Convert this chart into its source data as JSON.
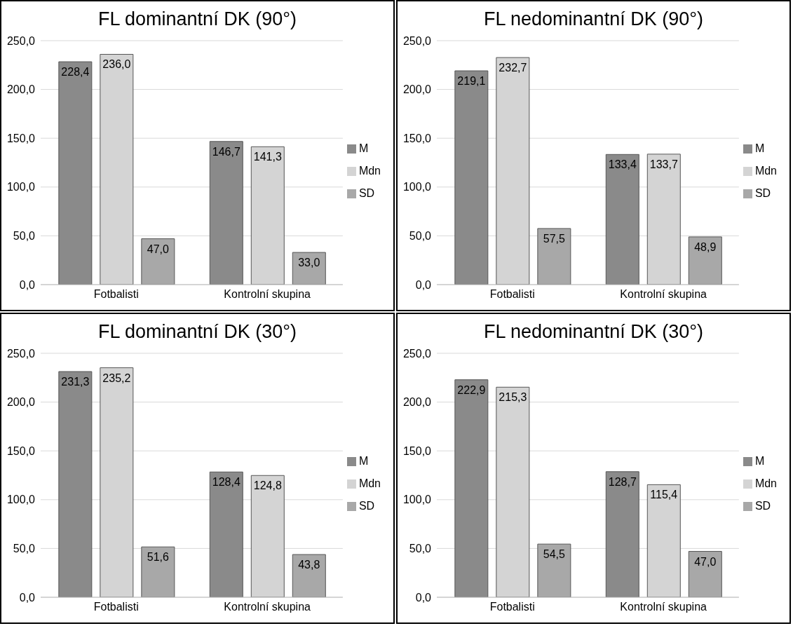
{
  "chart_data": [
    {
      "type": "bar",
      "title": "FL dominantní DK (90°)",
      "categories": [
        "Fotbalisti",
        "Kontrolní skupina"
      ],
      "ylim": [
        0,
        250
      ],
      "yticks": [
        {
          "value": 0,
          "label": "0,0"
        },
        {
          "value": 50,
          "label": "50,0"
        },
        {
          "value": 100,
          "label": "100,0"
        },
        {
          "value": 150,
          "label": "150,0"
        },
        {
          "value": 200,
          "label": "200,0"
        },
        {
          "value": 250,
          "label": "250,0"
        }
      ],
      "grid": "y",
      "legend": "right",
      "series": [
        {
          "name": "M",
          "color": "#8a8a8a",
          "values": [
            228.4,
            146.7
          ],
          "value_labels": [
            "228,4",
            "146,7"
          ]
        },
        {
          "name": "Mdn",
          "color": "#d4d4d4",
          "values": [
            236.0,
            141.3
          ],
          "value_labels": [
            "236,0",
            "141,3"
          ]
        },
        {
          "name": "SD",
          "color": "#a8a8a8",
          "values": [
            47.0,
            33.0
          ],
          "value_labels": [
            "47,0",
            "33,0"
          ]
        }
      ]
    },
    {
      "type": "bar",
      "title": "FL nedominantní DK (90°)",
      "categories": [
        "Fotbalisti",
        "Kontrolní skupina"
      ],
      "ylim": [
        0,
        250
      ],
      "yticks": [
        {
          "value": 0,
          "label": "0,0"
        },
        {
          "value": 50,
          "label": "50,0"
        },
        {
          "value": 100,
          "label": "100,0"
        },
        {
          "value": 150,
          "label": "150,0"
        },
        {
          "value": 200,
          "label": "200,0"
        },
        {
          "value": 250,
          "label": "250,0"
        }
      ],
      "grid": "y",
      "legend": "right",
      "series": [
        {
          "name": "M",
          "color": "#8a8a8a",
          "values": [
            219.1,
            133.4
          ],
          "value_labels": [
            "219,1",
            "133,4"
          ]
        },
        {
          "name": "Mdn",
          "color": "#d4d4d4",
          "values": [
            232.7,
            133.7
          ],
          "value_labels": [
            "232,7",
            "133,7"
          ]
        },
        {
          "name": "SD",
          "color": "#a8a8a8",
          "values": [
            57.5,
            48.9
          ],
          "value_labels": [
            "57,5",
            "48,9"
          ]
        }
      ]
    },
    {
      "type": "bar",
      "title": "FL dominantní DK (30°)",
      "categories": [
        "Fotbalisti",
        "Kontrolní skupina"
      ],
      "ylim": [
        0,
        250
      ],
      "yticks": [
        {
          "value": 0,
          "label": "0,0"
        },
        {
          "value": 50,
          "label": "50,0"
        },
        {
          "value": 100,
          "label": "100,0"
        },
        {
          "value": 150,
          "label": "150,0"
        },
        {
          "value": 200,
          "label": "200,0"
        },
        {
          "value": 250,
          "label": "250,0"
        }
      ],
      "grid": "y",
      "legend": "right",
      "series": [
        {
          "name": "M",
          "color": "#8a8a8a",
          "values": [
            231.3,
            128.4
          ],
          "value_labels": [
            "231,3",
            "128,4"
          ]
        },
        {
          "name": "Mdn",
          "color": "#d4d4d4",
          "values": [
            235.2,
            124.8
          ],
          "value_labels": [
            "235,2",
            "124,8"
          ]
        },
        {
          "name": "SD",
          "color": "#a8a8a8",
          "values": [
            51.6,
            43.8
          ],
          "value_labels": [
            "51,6",
            "43,8"
          ]
        }
      ]
    },
    {
      "type": "bar",
      "title": "FL nedominantní DK (30°)",
      "categories": [
        "Fotbalisti",
        "Kontrolní skupina"
      ],
      "ylim": [
        0,
        250
      ],
      "yticks": [
        {
          "value": 0,
          "label": "0,0"
        },
        {
          "value": 50,
          "label": "50,0"
        },
        {
          "value": 100,
          "label": "100,0"
        },
        {
          "value": 150,
          "label": "150,0"
        },
        {
          "value": 200,
          "label": "200,0"
        },
        {
          "value": 250,
          "label": "250,0"
        }
      ],
      "grid": "y",
      "legend": "right",
      "series": [
        {
          "name": "M",
          "color": "#8a8a8a",
          "values": [
            222.9,
            128.7
          ],
          "value_labels": [
            "222,9",
            "128,7"
          ]
        },
        {
          "name": "Mdn",
          "color": "#d4d4d4",
          "values": [
            215.3,
            115.4
          ],
          "value_labels": [
            "215,3",
            "115,4"
          ]
        },
        {
          "name": "SD",
          "color": "#a8a8a8",
          "values": [
            54.5,
            47.0
          ],
          "value_labels": [
            "54,5",
            "47,0"
          ]
        }
      ]
    }
  ]
}
